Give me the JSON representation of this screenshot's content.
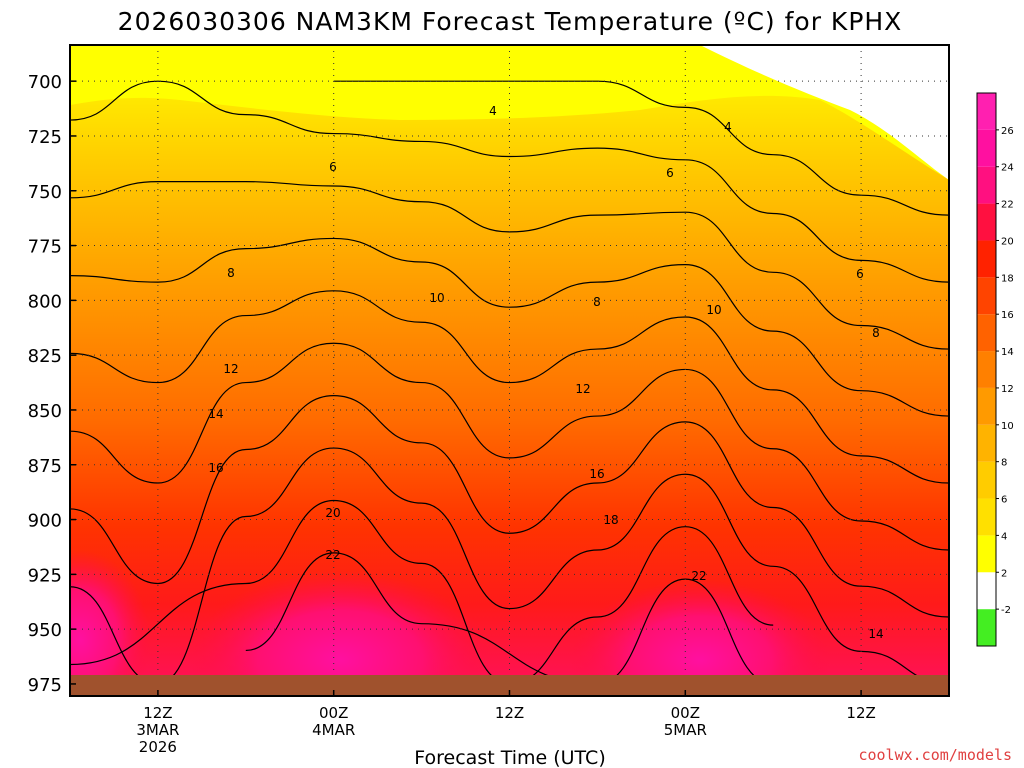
{
  "chart_data": {
    "type": "heatmap",
    "title": "2026030306 NAM3KM Forecast Temperature (ºC) for KPHX",
    "xlabel": "Forecast Time (UTC)",
    "ylabel": "",
    "y_ticks": [
      700,
      725,
      750,
      775,
      800,
      825,
      850,
      875,
      900,
      925,
      950,
      975
    ],
    "ylim": [
      975,
      675
    ],
    "x_ticks": [
      {
        "hour": 6,
        "lines": [
          "12Z",
          "3MAR",
          "2026"
        ]
      },
      {
        "hour": 18,
        "lines": [
          "00Z",
          "4MAR"
        ]
      },
      {
        "hour": 30,
        "lines": [
          "12Z"
        ]
      },
      {
        "hour": 42,
        "lines": [
          "00Z",
          "5MAR"
        ]
      },
      {
        "hour": 54,
        "lines": [
          "12Z"
        ]
      }
    ],
    "xlim": [
      0,
      60
    ],
    "colorbar": {
      "tick_labels": [
        "-2",
        "2",
        "4",
        "6",
        "8",
        "10",
        "12",
        "14",
        "16",
        "18",
        "20",
        "22",
        "24",
        "26"
      ],
      "colors": [
        "#44ee22",
        "#ffffff",
        "#ffff00",
        "#ffe000",
        "#ffcc00",
        "#ffb300",
        "#ff9a00",
        "#ff8000",
        "#ff6200",
        "#ff4400",
        "#ff2200",
        "#ff1040",
        "#ff1080",
        "#ff10a0",
        "#ff20b0"
      ]
    },
    "contour_labels": [
      "4",
      "4",
      "6",
      "6",
      "6",
      "8",
      "8",
      "8",
      "10",
      "10",
      "12",
      "12",
      "14",
      "14",
      "16",
      "16",
      "18",
      "20",
      "22",
      "22"
    ],
    "temperature_profiles": [
      {
        "hour": 0,
        "t700": 5.0,
        "t975": 20.5
      },
      {
        "hour": 6,
        "t700": 6.0,
        "t975": 18.0
      },
      {
        "hour": 12,
        "t700": 5.0,
        "t975": 23.0
      },
      {
        "hour": 18,
        "t700": 4.0,
        "t975": 27.0
      },
      {
        "hour": 24,
        "t700": 4.0,
        "t975": 24.0
      },
      {
        "hour": 30,
        "t700": 4.0,
        "t975": 20.0
      },
      {
        "hour": 36,
        "t700": 4.0,
        "t975": 22.0
      },
      {
        "hour": 42,
        "t700": 3.0,
        "t975": 26.0
      },
      {
        "hour": 48,
        "t700": 1.5,
        "t975": 22.0
      },
      {
        "hour": 54,
        "t700": 0.5,
        "t975": 19.0
      },
      {
        "hour": 60,
        "t700": 0.0,
        "t975": 18.0
      }
    ]
  },
  "credit": "coolwx.com/models"
}
